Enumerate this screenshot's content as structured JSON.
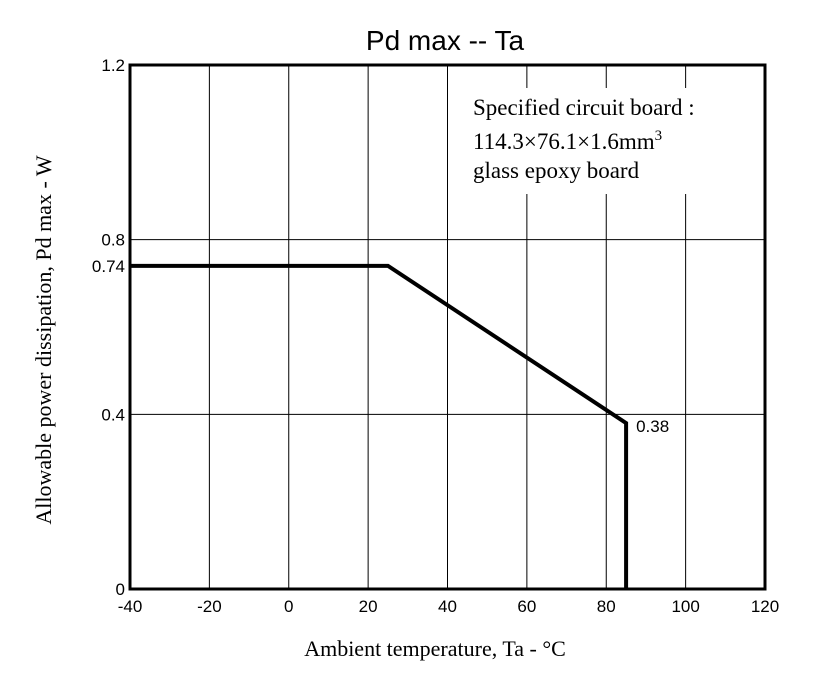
{
  "chart_data": {
    "type": "line",
    "title": "Pd max -- Ta",
    "xlabel": "Ambient temperature, Ta  - °C",
    "ylabel": "Allowable power dissipation, Pd max  -  W",
    "xlim": [
      -40,
      120
    ],
    "ylim": [
      0,
      1.2
    ],
    "x_ticks": [
      "-40",
      "-20",
      "0",
      "20",
      "40",
      "60",
      "80",
      "100",
      "120"
    ],
    "y_ticks": [
      "0",
      "0.4",
      "0.8",
      "1.2"
    ],
    "extra_y_tick": "0.74",
    "grid": true,
    "series": [
      {
        "x": [
          -40,
          25,
          85,
          85
        ],
        "y": [
          0.74,
          0.74,
          0.38,
          0
        ]
      }
    ],
    "point_label": {
      "text": "0.38",
      "x": 85,
      "y": 0.38
    },
    "annotation": {
      "line1": "Specified circuit board :",
      "line2": "114.3×76.1×1.6mm",
      "line2_sup": "3",
      "line3": "glass epoxy board"
    }
  }
}
